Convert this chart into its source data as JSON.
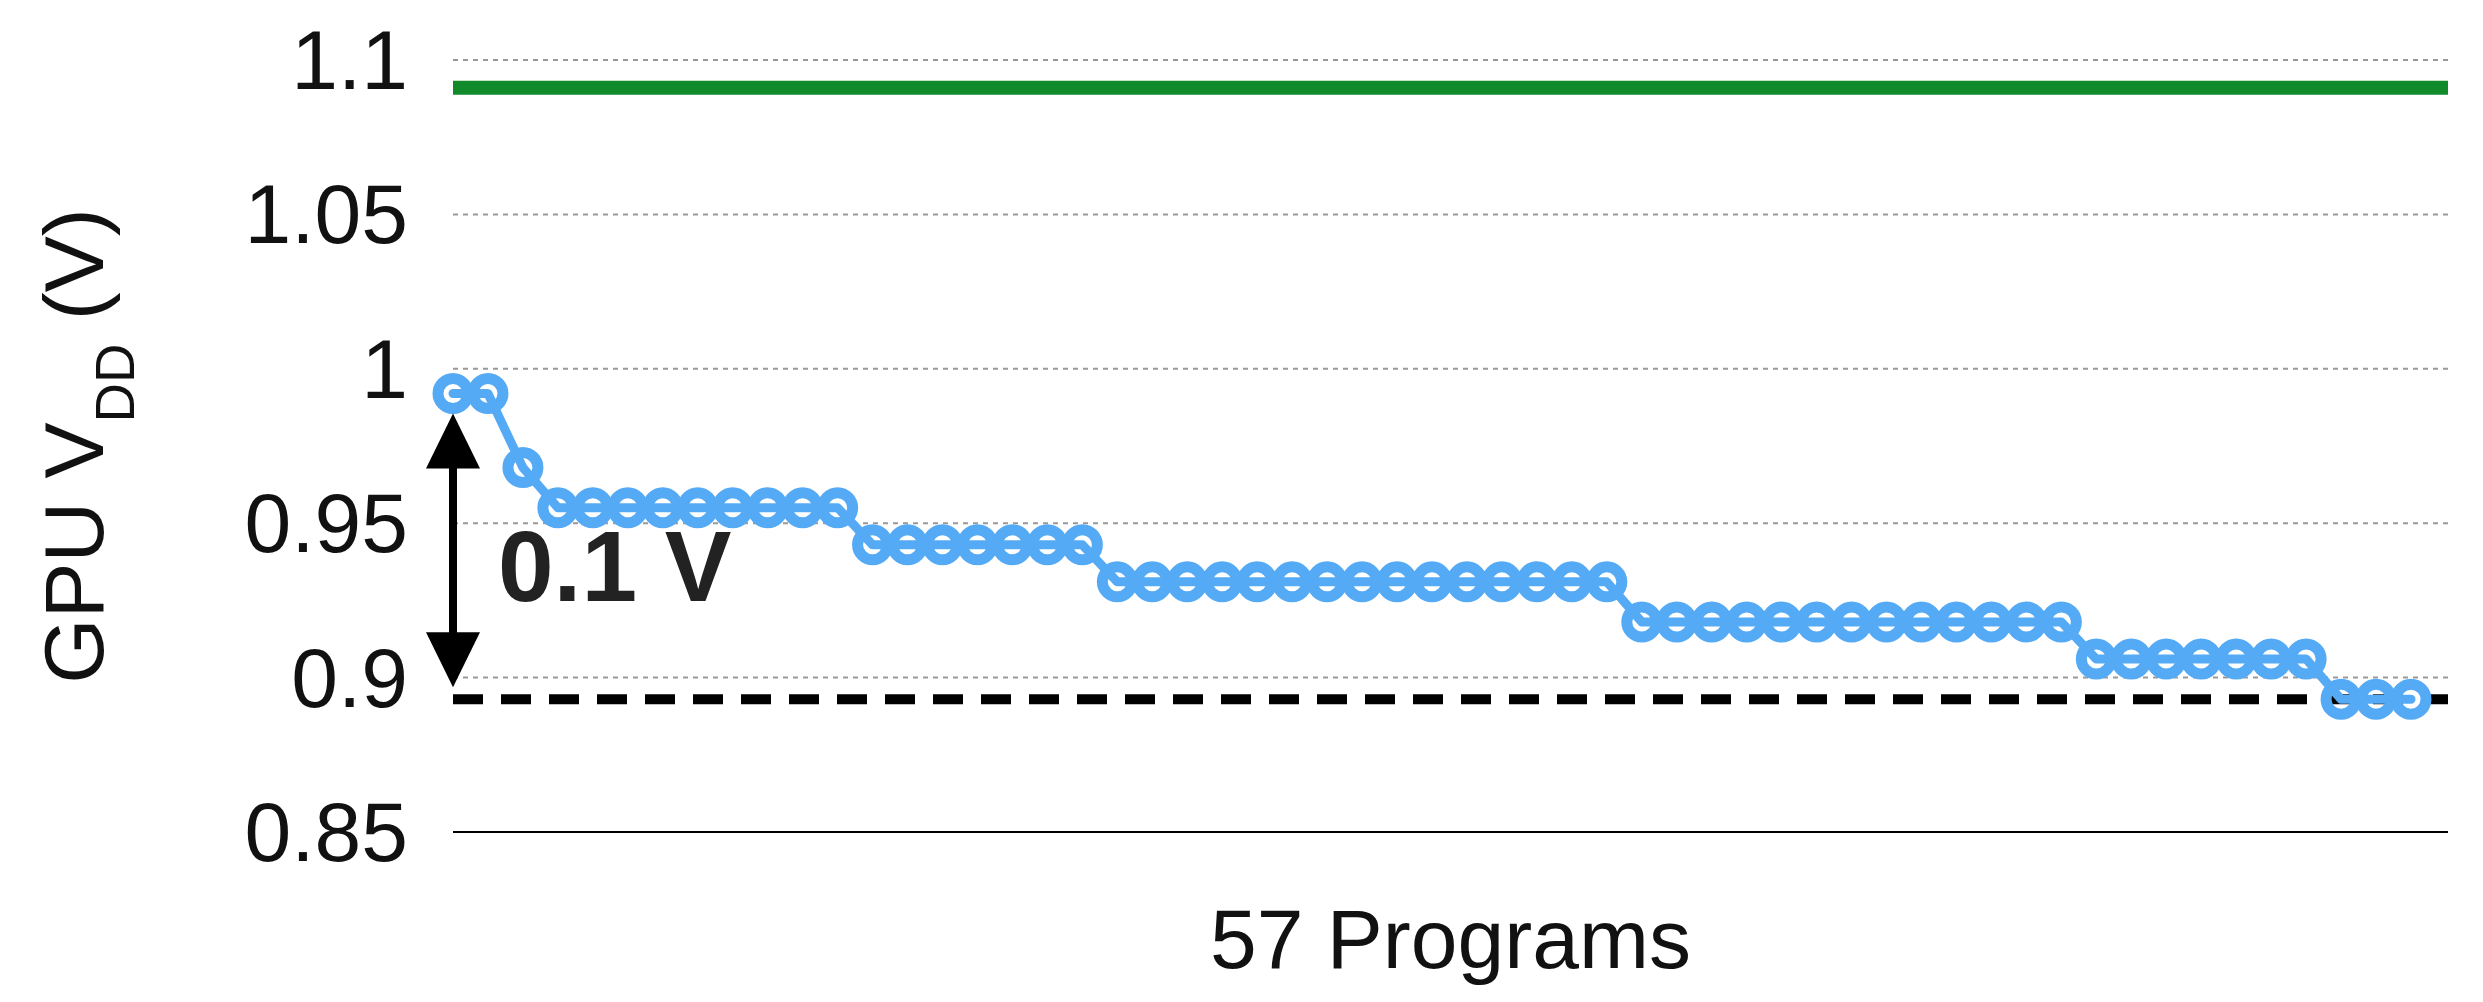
{
  "chart_data": {
    "type": "line",
    "xlabel": "57 Programs",
    "ylabel": "GPU V$_{DD}$ (V)",
    "categories": [
      null,
      null,
      null,
      null,
      null,
      null,
      null,
      null,
      null,
      null,
      null,
      null,
      null,
      null,
      null,
      null,
      null,
      null,
      null,
      null,
      null,
      null,
      null,
      null,
      null,
      null,
      null,
      null,
      null,
      null,
      null,
      null,
      null,
      null,
      null,
      null,
      null,
      null,
      null,
      null,
      null,
      null,
      null,
      null,
      null,
      null,
      null,
      null,
      null,
      null,
      null,
      null,
      null,
      null,
      null,
      null,
      null
    ],
    "series": [
      {
        "color": "#55aaf5",
        "values": [
          0.992,
          0.992,
          0.968,
          0.955,
          0.955,
          0.955,
          0.955,
          0.955,
          0.955,
          0.955,
          0.955,
          0.955,
          0.943,
          0.943,
          0.943,
          0.943,
          0.943,
          0.943,
          0.943,
          0.931,
          0.931,
          0.931,
          0.931,
          0.931,
          0.931,
          0.931,
          0.931,
          0.931,
          0.931,
          0.931,
          0.931,
          0.931,
          0.931,
          0.931,
          0.918,
          0.918,
          0.918,
          0.918,
          0.918,
          0.918,
          0.918,
          0.918,
          0.918,
          0.918,
          0.918,
          0.918,
          0.918,
          0.906,
          0.906,
          0.906,
          0.906,
          0.906,
          0.906,
          0.906,
          0.893,
          0.893,
          0.893
        ]
      }
    ],
    "ylim": [
      0.85,
      1.1
    ],
    "yticks": [
      0.85,
      0.9,
      0.95,
      1,
      1.05,
      1.1
    ],
    "grid": "y",
    "marker": "circle",
    "line_style": "solid",
    "ref_lines": [
      {
        "axis": "y",
        "value": 1.091,
        "color": "#118a2b",
        "line_style": "solid"
      },
      {
        "axis": "y",
        "value": 0.893,
        "color": "#000000",
        "line_style": "dashed"
      }
    ],
    "annotations": [
      "0.1 V"
    ]
  }
}
